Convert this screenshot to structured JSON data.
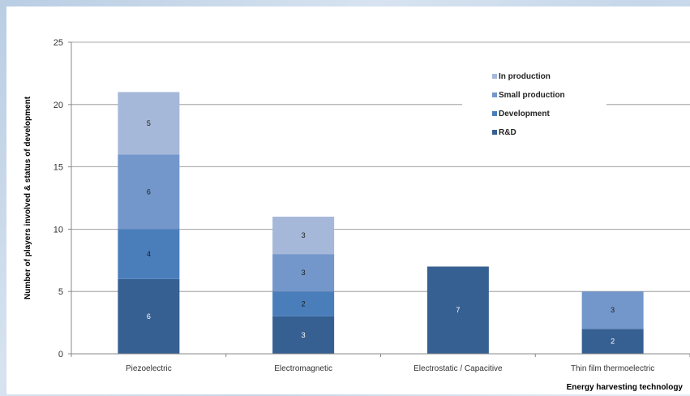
{
  "chart_data": {
    "type": "bar",
    "stacked": true,
    "title": "",
    "xlabel": "Energy harvesting technology",
    "ylabel": "Number of players involved & status of development",
    "ylim": [
      0,
      25
    ],
    "yticks": [
      "0",
      "5",
      "10",
      "15",
      "20",
      "25"
    ],
    "categories": [
      "Piezoelectric",
      "Electromagnetic",
      "Electrostatic / Capacitive",
      "Thin film thermoelectric"
    ],
    "series": [
      {
        "name": "R&D",
        "color": "#376092",
        "values": [
          6,
          3,
          7,
          2
        ]
      },
      {
        "name": "Development",
        "color": "#4a7ebb",
        "values": [
          4,
          2,
          0,
          0
        ]
      },
      {
        "name": "Small production",
        "color": "#7397cb",
        "values": [
          6,
          3,
          0,
          3
        ]
      },
      {
        "name": "In production",
        "color": "#a6b8d9",
        "values": [
          5,
          3,
          0,
          0
        ]
      }
    ],
    "legend": {
      "placement": "top-right",
      "order": [
        "In production",
        "Small production",
        "Development",
        "R&D"
      ]
    },
    "grid": true
  }
}
